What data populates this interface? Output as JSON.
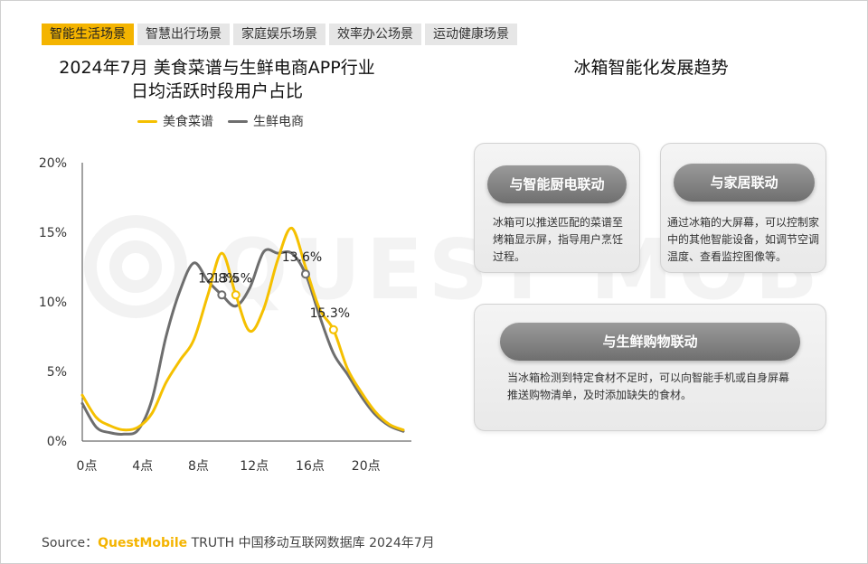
{
  "tabs": [
    {
      "label": "智能生活场景",
      "active": true
    },
    {
      "label": "智慧出行场景",
      "active": false
    },
    {
      "label": "家庭娱乐场景",
      "active": false
    },
    {
      "label": "效率办公场景",
      "active": false
    },
    {
      "label": "运动健康场景",
      "active": false
    }
  ],
  "left": {
    "title_line1": "2024年7月 美食菜谱与生鲜电商APP行业",
    "title_line2": "日均活跃时段用户占比"
  },
  "right": {
    "title": "冰箱智能化发展趋势",
    "cards": [
      {
        "label": "与智能厨电联动",
        "desc": "冰箱可以推送匹配的菜谱至烤箱显示屏，指导用户烹饪过程。"
      },
      {
        "label": "与家居联动",
        "desc": "通过冰箱的大屏幕，可以控制家中的其他智能设备，如调节空调温度、查看监控图像等。"
      },
      {
        "label": "与生鲜购物联动",
        "desc": "当冰箱检测到特定食材不足时，可以向智能手机或自身屏幕推送购物清单，及时添加缺失的食材。"
      }
    ]
  },
  "source": {
    "prefix": "Source：",
    "brand": "QuestMobile",
    "text": " TRUTH 中国移动互联网数据库 2024年7月"
  },
  "colors": {
    "accent": "#f4b400",
    "series1": "#f5c000",
    "series2": "#6e6e6e"
  },
  "chart_data": {
    "type": "line",
    "x": [
      0,
      1,
      2,
      3,
      4,
      5,
      6,
      7,
      8,
      9,
      10,
      11,
      12,
      13,
      14,
      15,
      16,
      17,
      18,
      19,
      20,
      21,
      22,
      23
    ],
    "xticks": [
      0,
      4,
      8,
      12,
      16,
      20
    ],
    "xtick_labels": [
      "0点",
      "4点",
      "8点",
      "12点",
      "16点",
      "20点"
    ],
    "ylim": [
      0,
      20
    ],
    "yticks": [
      0,
      5,
      10,
      15,
      20
    ],
    "ytick_labels": [
      "0%",
      "5%",
      "10%",
      "15%",
      "20%"
    ],
    "legend_position": "top",
    "series": [
      {
        "name": "美食菜谱",
        "color": "#f5c000",
        "values": [
          3.3,
          1.7,
          1.1,
          0.8,
          1.0,
          2.0,
          4.2,
          5.8,
          7.3,
          10.5,
          13.5,
          10.5,
          7.9,
          9.5,
          13.0,
          15.3,
          12.5,
          9.5,
          8.0,
          5.2,
          3.5,
          2.1,
          1.2,
          0.8
        ]
      },
      {
        "name": "生鲜电商",
        "color": "#6e6e6e",
        "values": [
          2.7,
          1.0,
          0.6,
          0.5,
          0.8,
          3.0,
          7.5,
          10.8,
          12.8,
          11.5,
          10.5,
          9.7,
          11.0,
          13.6,
          13.5,
          13.5,
          12.0,
          9.0,
          6.3,
          4.8,
          3.2,
          1.9,
          1.1,
          0.7
        ]
      }
    ],
    "annotations": [
      {
        "series": 1,
        "x": 10,
        "label": "12.8%"
      },
      {
        "series": 0,
        "x": 11,
        "label": "13.5%"
      },
      {
        "series": 1,
        "x": 16,
        "label": "13.6%"
      },
      {
        "series": 0,
        "x": 18,
        "label": "15.3%"
      }
    ]
  }
}
